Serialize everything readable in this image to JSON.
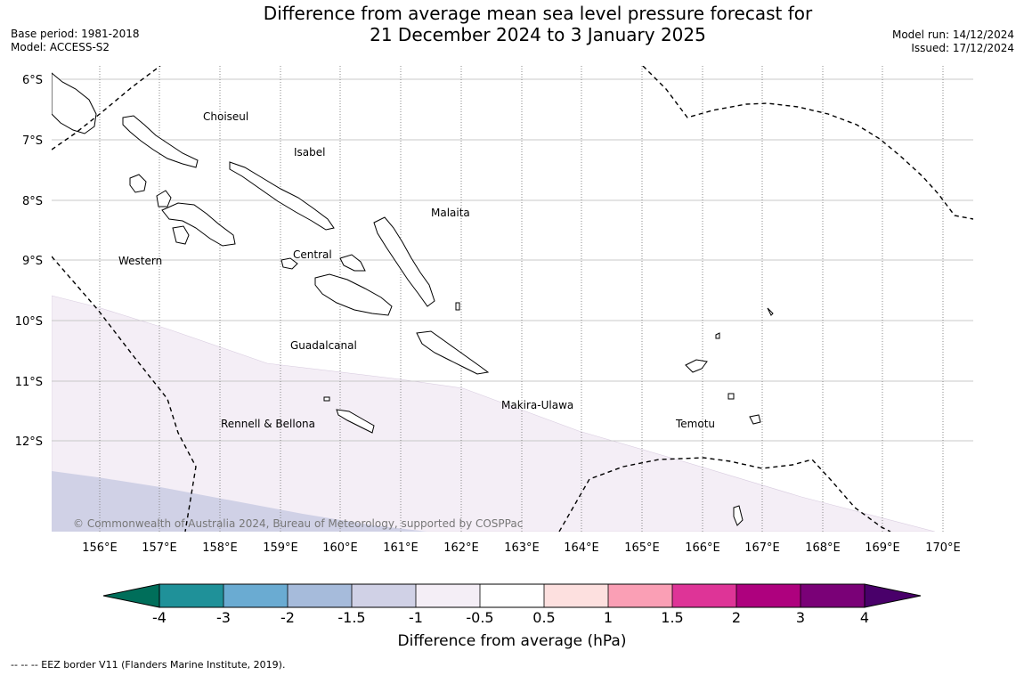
{
  "title": {
    "line1": "Difference from average mean sea level pressure forecast for",
    "line2": "21 December 2024 to 3 January 2025"
  },
  "meta": {
    "base_period": "Base period: 1981-2018",
    "model": "Model: ACCESS-S2",
    "model_run": "Model run: 14/12/2024",
    "issued": "Issued: 17/12/2024"
  },
  "map": {
    "lat_labels": [
      "6°S",
      "7°S",
      "8°S",
      "9°S",
      "10°S",
      "11°S",
      "12°S"
    ],
    "lon_labels": [
      "156°E",
      "157°E",
      "158°E",
      "159°E",
      "160°E",
      "161°E",
      "162°E",
      "163°E",
      "164°E",
      "165°E",
      "166°E",
      "167°E",
      "168°E",
      "169°E",
      "170°E"
    ],
    "regions": [
      "Choiseul",
      "Isabel",
      "Malaita",
      "Western",
      "Central",
      "Guadalcanal",
      "Makira-Ulawa",
      "Rennell & Bellona",
      "Temotu"
    ],
    "copyright": "© Commonwealth of Australia 2024, Bureau of Meteorology, supported by COSPPac"
  },
  "colorbar": {
    "title": "Difference from average (hPa)",
    "tick_labels": [
      "-4",
      "-3",
      "-2",
      "-1.5",
      "-1",
      "-0.5",
      "0.5",
      "1",
      "1.5",
      "2",
      "3",
      "4"
    ],
    "colors": [
      "#006e5a",
      "#1f9199",
      "#6aabd2",
      "#a6bbdb",
      "#d0d1e6",
      "#f4eef6",
      "#ffffff",
      "#fde0df",
      "#fa9fb5",
      "#de3497",
      "#ae017e",
      "#7a0177",
      "#49006a"
    ]
  },
  "footnote": "--  --  -- EEZ border V11 (Flanders Marine Institute, 2019)."
}
